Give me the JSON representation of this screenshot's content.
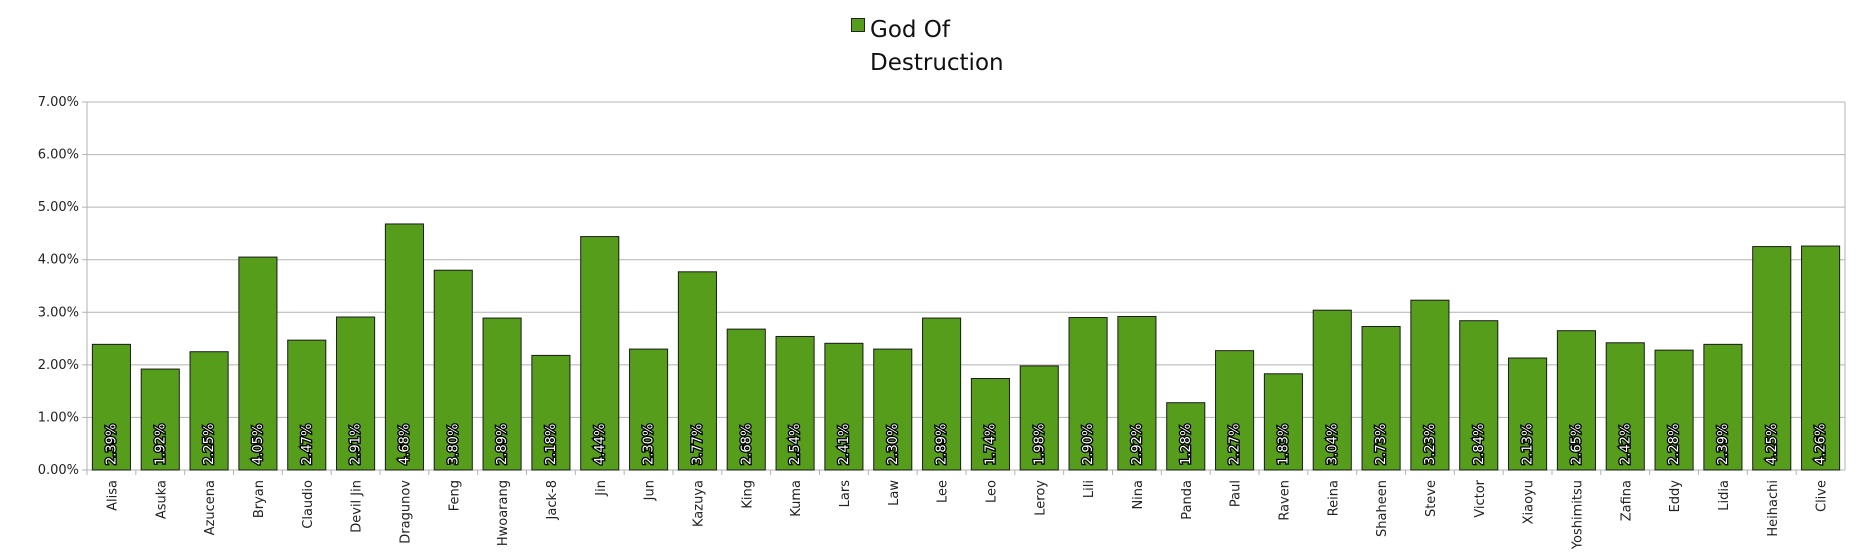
{
  "legend": {
    "label": "God Of Destruction"
  },
  "colors": {
    "bar": "#579d1c",
    "bar_stroke": "#1a1a1a",
    "grid": "#b3b3b3",
    "axis": "#b3b3b3"
  },
  "chart_data": {
    "type": "bar",
    "categories": [
      "Alisa",
      "Asuka",
      "Azucena",
      "Bryan",
      "Claudio",
      "Devil Jin",
      "Dragunov",
      "Feng",
      "Hwoarang",
      "Jack-8",
      "Jin",
      "Jun",
      "Kazuya",
      "King",
      "Kuma",
      "Lars",
      "Law",
      "Lee",
      "Leo",
      "Leroy",
      "Lili",
      "Nina",
      "Panda",
      "Paul",
      "Raven",
      "Reina",
      "Shaheen",
      "Steve",
      "Victor",
      "Xiaoyu",
      "Yoshimitsu",
      "Zafina",
      "Eddy",
      "Lidia",
      "Heihachi",
      "Clive"
    ],
    "series": [
      {
        "name": "God Of Destruction",
        "values": [
          2.39,
          1.92,
          2.25,
          4.05,
          2.47,
          2.91,
          4.68,
          3.8,
          2.89,
          2.18,
          4.44,
          2.3,
          3.77,
          2.68,
          2.54,
          2.41,
          2.3,
          2.89,
          1.74,
          1.98,
          2.9,
          2.92,
          1.28,
          2.27,
          1.83,
          3.04,
          2.73,
          3.23,
          2.84,
          2.13,
          2.65,
          2.42,
          2.28,
          2.39,
          4.25,
          4.26
        ],
        "labels": [
          "2.39%",
          "1.92%",
          "2.25%",
          "4.05%",
          "2.47%",
          "2.91%",
          "4.68%",
          "3.80%",
          "2.89%",
          "2.18%",
          "4.44%",
          "2.30%",
          "3.77%",
          "2.68%",
          "2.54%",
          "2.41%",
          "2.30%",
          "2.89%",
          "1.74%",
          "1.98%",
          "2.90%",
          "2.92%",
          "1.28%",
          "2.27%",
          "1.83%",
          "3.04%",
          "2.73%",
          "3.23%",
          "2.84%",
          "2.13%",
          "2.65%",
          "2.42%",
          "2.28%",
          "2.39%",
          "4.25%",
          "4.26%"
        ]
      }
    ],
    "yticks": [
      "0.00%",
      "1.00%",
      "2.00%",
      "3.00%",
      "4.00%",
      "5.00%",
      "6.00%",
      "7.00%"
    ],
    "ylim": [
      0,
      7
    ],
    "ylabel": "",
    "xlabel": "",
    "grid": true,
    "legend_position": "top-center"
  }
}
